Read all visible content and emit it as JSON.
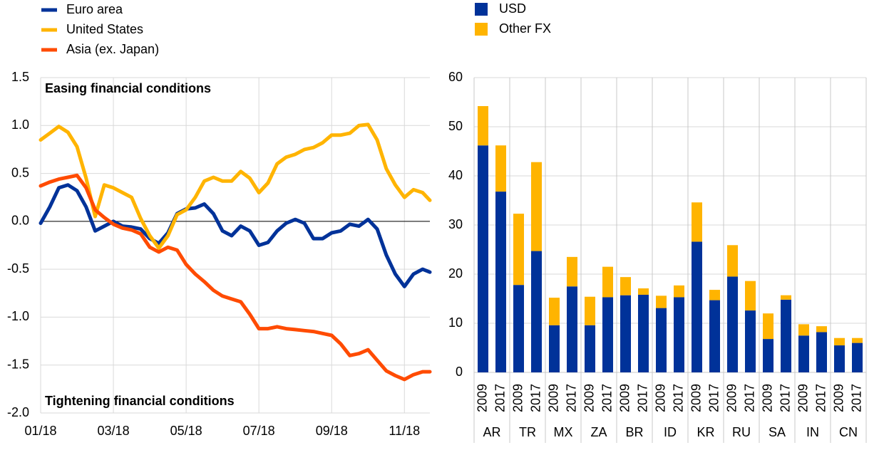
{
  "chart_data": [
    {
      "type": "line",
      "annotations": [
        "Easing financial conditions",
        "Tightening financial conditions"
      ],
      "x": [
        0,
        0.25,
        0.5,
        0.75,
        1,
        1.25,
        1.5,
        1.75,
        2,
        2.25,
        2.5,
        2.75,
        3,
        3.25,
        3.5,
        3.75,
        4,
        4.25,
        4.5,
        4.75,
        5,
        5.25,
        5.5,
        5.75,
        6,
        6.25,
        6.5,
        6.75,
        7,
        7.25,
        7.5,
        7.75,
        8,
        8.25,
        8.5,
        8.75,
        9,
        9.25,
        9.5,
        9.75,
        10,
        10.25,
        10.5,
        10.7
      ],
      "series": [
        {
          "name": "Euro area",
          "color": "#003299",
          "values": [
            -0.02,
            0.15,
            0.35,
            0.38,
            0.32,
            0.15,
            -0.1,
            -0.05,
            0.0,
            -0.05,
            -0.06,
            -0.08,
            -0.18,
            -0.23,
            -0.12,
            0.08,
            0.13,
            0.14,
            0.18,
            0.08,
            -0.1,
            -0.15,
            -0.05,
            -0.1,
            -0.25,
            -0.22,
            -0.1,
            -0.02,
            0.02,
            -0.02,
            -0.18,
            -0.18,
            -0.12,
            -0.1,
            -0.03,
            -0.05,
            0.02,
            -0.08,
            -0.35,
            -0.55,
            -0.68,
            -0.55,
            -0.5,
            -0.53
          ]
        },
        {
          "name": "United States",
          "color": "#ffb400",
          "values": [
            0.85,
            0.92,
            0.99,
            0.93,
            0.78,
            0.45,
            0.05,
            0.38,
            0.35,
            0.3,
            0.25,
            0.03,
            -0.15,
            -0.28,
            -0.15,
            0.07,
            0.12,
            0.25,
            0.42,
            0.46,
            0.42,
            0.42,
            0.52,
            0.45,
            0.3,
            0.4,
            0.6,
            0.67,
            0.7,
            0.75,
            0.77,
            0.82,
            0.9,
            0.9,
            0.92,
            1.0,
            1.01,
            0.85,
            0.55,
            0.38,
            0.25,
            0.33,
            0.3,
            0.22
          ]
        },
        {
          "name": "Asia (ex. Japan)",
          "color": "#ff4b00",
          "values": [
            0.37,
            0.41,
            0.44,
            0.46,
            0.48,
            0.35,
            0.12,
            0.04,
            -0.03,
            -0.07,
            -0.09,
            -0.13,
            -0.27,
            -0.32,
            -0.27,
            -0.3,
            -0.45,
            -0.55,
            -0.63,
            -0.72,
            -0.78,
            -0.81,
            -0.84,
            -0.97,
            -1.12,
            -1.12,
            -1.1,
            -1.12,
            -1.13,
            -1.14,
            -1.15,
            -1.17,
            -1.19,
            -1.28,
            -1.4,
            -1.38,
            -1.34,
            -1.45,
            -1.56,
            -1.61,
            -1.65,
            -1.6,
            -1.57,
            -1.57
          ]
        }
      ],
      "xlim": [
        0,
        10.7
      ],
      "xticks": [
        {
          "value": 0,
          "label": "01/18"
        },
        {
          "value": 2,
          "label": "03/18"
        },
        {
          "value": 4,
          "label": "05/18"
        },
        {
          "value": 6,
          "label": "07/18"
        },
        {
          "value": 8,
          "label": "09/18"
        },
        {
          "value": 10,
          "label": "11/18"
        }
      ],
      "ylim": [
        -2.0,
        1.5
      ],
      "yticks": [
        {
          "value": -2,
          "label": "-2.0"
        },
        -1.5,
        {
          "value": -1,
          "label": "-1.0"
        },
        -0.5,
        {
          "value": 0,
          "label": "0.0"
        },
        0.5,
        {
          "value": 1,
          "label": "1.0"
        },
        1.5
      ],
      "grid": true
    },
    {
      "type": "bar",
      "stacked": true,
      "categories": [
        "2009",
        "2017",
        "2009",
        "2017",
        "2009",
        "2017",
        "2009",
        "2017",
        "2009",
        "2017",
        "2009",
        "2017",
        "2009",
        "2017",
        "2009",
        "2017",
        "2009",
        "2017",
        "2009",
        "2017",
        "2009",
        "2017"
      ],
      "groups": [
        "AR",
        "TR",
        "MX",
        "ZA",
        "BR",
        "ID",
        "KR",
        "RU",
        "SA",
        "IN",
        "CN"
      ],
      "series": [
        {
          "name": "USD",
          "color": "#003299",
          "values": [
            46.2,
            36.8,
            17.8,
            24.7,
            9.6,
            17.5,
            9.6,
            15.3,
            15.7,
            15.8,
            13.1,
            15.3,
            26.6,
            14.7,
            19.5,
            12.6,
            6.8,
            14.8,
            7.5,
            8.2,
            5.5,
            6.0
          ]
        },
        {
          "name": "Other FX",
          "color": "#ffb400",
          "values": [
            8.0,
            9.4,
            14.5,
            18.1,
            5.6,
            6.0,
            5.8,
            6.2,
            3.7,
            1.3,
            2.5,
            2.4,
            8.0,
            2.1,
            6.4,
            6.0,
            5.2,
            0.9,
            2.3,
            1.2,
            1.5,
            1.0
          ]
        }
      ],
      "ylim": [
        0,
        60
      ],
      "yticks": [
        0,
        10,
        20,
        30,
        40,
        50,
        60
      ],
      "grid": true
    }
  ]
}
